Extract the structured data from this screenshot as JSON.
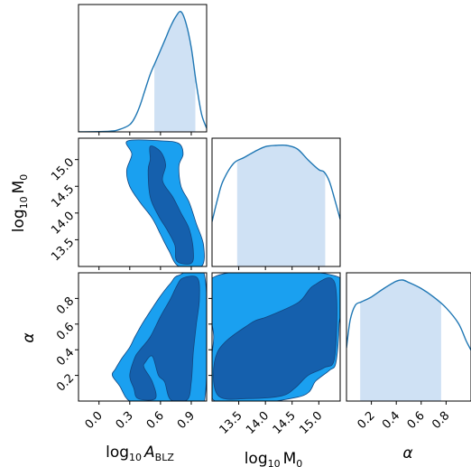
{
  "chart_data": {
    "type": "corner",
    "parameters": [
      {
        "key": "logA",
        "label": "log10 A_BLZ",
        "ticks": [
          0.0,
          0.3,
          0.6,
          0.9
        ],
        "tick_labels": [
          "0.0",
          "0.3",
          "0.6",
          "0.9"
        ],
        "range": [
          -0.2,
          1.05
        ]
      },
      {
        "key": "logM0",
        "label": "log10 M0",
        "ticks": [
          13.5,
          14.0,
          14.5,
          15.0
        ],
        "tick_labels": [
          "13.5",
          "14.0",
          "14.5",
          "15.0"
        ],
        "range": [
          13.0,
          15.4
        ]
      },
      {
        "key": "alpha",
        "label": "α",
        "ticks": [
          0.2,
          0.4,
          0.6,
          0.8
        ],
        "tick_labels": [
          "0.2",
          "0.4",
          "0.6",
          "0.8"
        ],
        "range": [
          0.0,
          1.0
        ]
      }
    ],
    "diagonal": [
      {
        "param": "logA",
        "x": [
          -0.2,
          0.1,
          0.2,
          0.3,
          0.35,
          0.4,
          0.45,
          0.5,
          0.55,
          0.6,
          0.65,
          0.7,
          0.75,
          0.8,
          0.85,
          0.9,
          0.95,
          1.0,
          1.05
        ],
        "density": [
          0.0,
          0.005,
          0.02,
          0.06,
          0.12,
          0.22,
          0.35,
          0.48,
          0.58,
          0.68,
          0.78,
          0.88,
          0.96,
          1.0,
          0.9,
          0.7,
          0.4,
          0.15,
          0.03
        ],
        "interval": [
          0.54,
          0.94
        ]
      },
      {
        "param": "logM0",
        "x": [
          13.0,
          13.1,
          13.2,
          13.4,
          13.6,
          13.8,
          14.0,
          14.2,
          14.4,
          14.6,
          14.8,
          15.0,
          15.1,
          15.2,
          15.3,
          15.4
        ],
        "density": [
          0.37,
          0.55,
          0.7,
          0.85,
          0.9,
          0.95,
          0.99,
          1.0,
          1.0,
          0.97,
          0.88,
          0.8,
          0.78,
          0.7,
          0.55,
          0.39
        ],
        "interval": [
          13.47,
          15.12
        ]
      },
      {
        "param": "alpha",
        "x": [
          0.0,
          0.03,
          0.07,
          0.12,
          0.2,
          0.3,
          0.4,
          0.45,
          0.5,
          0.6,
          0.7,
          0.8,
          0.9,
          0.96,
          1.0
        ],
        "density": [
          0.44,
          0.67,
          0.79,
          0.82,
          0.86,
          0.93,
          0.99,
          1.0,
          0.98,
          0.93,
          0.86,
          0.77,
          0.64,
          0.5,
          0.42
        ],
        "interval": [
          0.11,
          0.76
        ]
      }
    ],
    "contours": [
      {
        "x": "logA",
        "y": "logM0",
        "outer": [
          [
            0.28,
            15.35
          ],
          [
            0.62,
            15.35
          ],
          [
            0.78,
            15.3
          ],
          [
            0.82,
            15.1
          ],
          [
            0.78,
            14.88
          ],
          [
            0.8,
            14.5
          ],
          [
            0.88,
            14.2
          ],
          [
            0.95,
            13.8
          ],
          [
            1.02,
            13.4
          ],
          [
            1.0,
            13.0
          ],
          [
            0.78,
            13.0
          ],
          [
            0.68,
            13.3
          ],
          [
            0.6,
            13.6
          ],
          [
            0.52,
            13.9
          ],
          [
            0.4,
            14.2
          ],
          [
            0.3,
            14.5
          ],
          [
            0.27,
            14.8
          ],
          [
            0.32,
            15.1
          ]
        ],
        "inner": [
          [
            0.5,
            15.25
          ],
          [
            0.6,
            15.15
          ],
          [
            0.65,
            14.9
          ],
          [
            0.62,
            14.6
          ],
          [
            0.72,
            14.3
          ],
          [
            0.8,
            14.0
          ],
          [
            0.88,
            13.7
          ],
          [
            0.92,
            13.3
          ],
          [
            0.9,
            13.06
          ],
          [
            0.76,
            13.1
          ],
          [
            0.74,
            13.4
          ],
          [
            0.66,
            13.7
          ],
          [
            0.58,
            13.95
          ],
          [
            0.5,
            14.3
          ],
          [
            0.48,
            14.8
          ],
          [
            0.5,
            15.0
          ]
        ]
      },
      {
        "x": "logA",
        "y": "alpha",
        "outer": [
          [
            0.16,
            0.25
          ],
          [
            0.22,
            0.33
          ],
          [
            0.3,
            0.42
          ],
          [
            0.35,
            0.5
          ],
          [
            0.42,
            0.6
          ],
          [
            0.5,
            0.7
          ],
          [
            0.6,
            0.82
          ],
          [
            0.7,
            0.92
          ],
          [
            0.78,
            0.98
          ],
          [
            1.03,
            0.98
          ],
          [
            1.03,
            0.0
          ],
          [
            0.84,
            0.0
          ],
          [
            0.68,
            0.0
          ],
          [
            0.5,
            0.0
          ],
          [
            0.3,
            0.0
          ],
          [
            0.2,
            0.12
          ],
          [
            0.13,
            0.2
          ]
        ],
        "inner": [
          [
            0.35,
            0.34
          ],
          [
            0.4,
            0.4
          ],
          [
            0.5,
            0.5
          ],
          [
            0.6,
            0.66
          ],
          [
            0.7,
            0.8
          ],
          [
            0.76,
            0.9
          ],
          [
            0.82,
            0.96
          ],
          [
            0.96,
            0.96
          ],
          [
            0.98,
            0.8
          ],
          [
            0.95,
            0.6
          ],
          [
            0.92,
            0.38
          ],
          [
            0.9,
            0.15
          ],
          [
            0.86,
            0.01
          ],
          [
            0.7,
            0.01
          ],
          [
            0.64,
            0.15
          ],
          [
            0.58,
            0.2
          ],
          [
            0.52,
            0.35
          ],
          [
            0.45,
            0.3
          ],
          [
            0.44,
            0.26
          ],
          [
            0.52,
            0.15
          ],
          [
            0.55,
            0.02
          ],
          [
            0.38,
            0.02
          ],
          [
            0.34,
            0.1
          ],
          [
            0.3,
            0.2
          ]
        ]
      },
      {
        "x": "logM0",
        "y": "alpha",
        "outer": [
          [
            13.05,
            0.97
          ],
          [
            15.35,
            0.97
          ],
          [
            15.38,
            0.6
          ],
          [
            15.32,
            0.3
          ],
          [
            15.2,
            0.24
          ],
          [
            14.95,
            0.16
          ],
          [
            14.6,
            0.03
          ],
          [
            13.05,
            0.0
          ],
          [
            13.03,
            0.5
          ]
        ],
        "inner": [
          [
            13.1,
            0.05
          ],
          [
            13.1,
            0.38
          ],
          [
            13.7,
            0.6
          ],
          [
            14.05,
            0.66
          ],
          [
            14.62,
            0.77
          ],
          [
            14.9,
            0.9
          ],
          [
            15.3,
            0.92
          ],
          [
            15.3,
            0.35
          ],
          [
            15.1,
            0.26
          ],
          [
            14.8,
            0.2
          ],
          [
            14.55,
            0.1
          ],
          [
            14.3,
            0.04
          ],
          [
            13.7,
            0.02
          ]
        ]
      }
    ],
    "colors": {
      "line": "#1f77b4",
      "fill_interval": "#cfe1f4",
      "contour_outer": "#1aa0f0",
      "contour_inner": "#1560ad",
      "contour_edge": "#12457f"
    }
  },
  "labels": {
    "x0": "log10 A_BLZ",
    "x1": "log10 M0",
    "x2": "α",
    "y1": "log10 M0",
    "y2": "α"
  }
}
